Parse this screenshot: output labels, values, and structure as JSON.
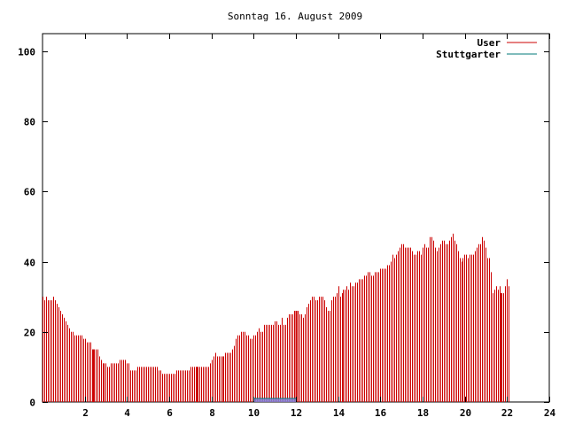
{
  "chart_data": {
    "type": "bar",
    "title": "Sonntag 16. August 2009",
    "xlabel": "",
    "ylabel": "",
    "xlim": [
      0,
      24
    ],
    "ylim": [
      0,
      105
    ],
    "x_ticks": [
      2,
      4,
      6,
      8,
      10,
      12,
      14,
      16,
      18,
      20,
      22,
      24
    ],
    "y_ticks": [
      0,
      20,
      40,
      60,
      80,
      100
    ],
    "grid": false,
    "legend_position": "top-right",
    "colors": {
      "user": "#cc0000",
      "stuttgarter": "#007a7a",
      "stuttgarter_fill": "#8080d8"
    },
    "series": [
      {
        "name": "User",
        "x_start": 0,
        "x_step": 0.0833,
        "values": [
          30,
          29,
          30,
          29,
          29,
          29,
          30,
          29,
          28,
          27,
          26,
          25,
          24,
          23,
          22,
          21,
          20,
          20,
          19,
          19,
          19,
          19,
          19,
          18,
          18,
          17,
          17,
          17,
          15,
          15,
          15,
          15,
          13,
          12,
          11,
          11,
          11,
          10,
          10,
          11,
          11,
          11,
          11,
          11,
          12,
          12,
          12,
          12,
          11,
          11,
          9,
          9,
          9,
          9,
          10,
          10,
          10,
          10,
          10,
          10,
          10,
          10,
          10,
          10,
          10,
          10,
          9,
          9,
          8,
          8,
          8,
          8,
          8,
          8,
          8,
          8,
          9,
          9,
          9,
          9,
          9,
          9,
          9,
          9,
          10,
          10,
          10,
          10,
          10,
          10,
          10,
          10,
          10,
          10,
          10,
          11,
          12,
          13,
          14,
          13,
          13,
          13,
          13,
          13,
          14,
          14,
          14,
          14,
          15,
          16,
          18,
          19,
          19,
          20,
          20,
          20,
          19,
          19,
          18,
          18,
          19,
          19,
          20,
          21,
          20,
          20,
          22,
          22,
          22,
          22,
          22,
          22,
          23,
          23,
          22,
          22,
          24,
          22,
          22,
          24,
          25,
          25,
          25,
          26,
          26,
          26,
          25,
          25,
          24,
          25,
          27,
          28,
          29,
          30,
          30,
          29,
          29,
          30,
          30,
          30,
          29,
          27,
          26,
          26,
          29,
          30,
          30,
          31,
          33,
          30,
          31,
          32,
          32,
          33,
          32,
          34,
          33,
          33,
          34,
          34,
          35,
          35,
          35,
          36,
          36,
          37,
          37,
          36,
          36,
          37,
          37,
          37,
          38,
          38,
          38,
          38,
          39,
          39,
          40,
          42,
          41,
          42,
          43,
          44,
          45,
          45,
          44,
          44,
          44,
          44,
          43,
          42,
          42,
          43,
          43,
          42,
          44,
          45,
          44,
          44,
          47,
          47,
          46,
          44,
          43,
          44,
          45,
          46,
          46,
          45,
          45,
          46,
          47,
          48,
          46,
          45,
          43,
          41,
          40,
          41,
          42,
          42,
          41,
          42,
          42,
          42,
          43,
          44,
          45,
          45,
          47,
          46,
          44,
          41,
          41,
          37,
          31,
          32,
          33,
          32,
          33,
          31,
          31,
          33,
          35,
          33
        ]
      },
      {
        "name": "Stuttgarter",
        "x_start": 10,
        "x_end": 12,
        "value": 1
      }
    ],
    "highlight_x": [
      2.4,
      7.3,
      12.0,
      21.7
    ]
  }
}
